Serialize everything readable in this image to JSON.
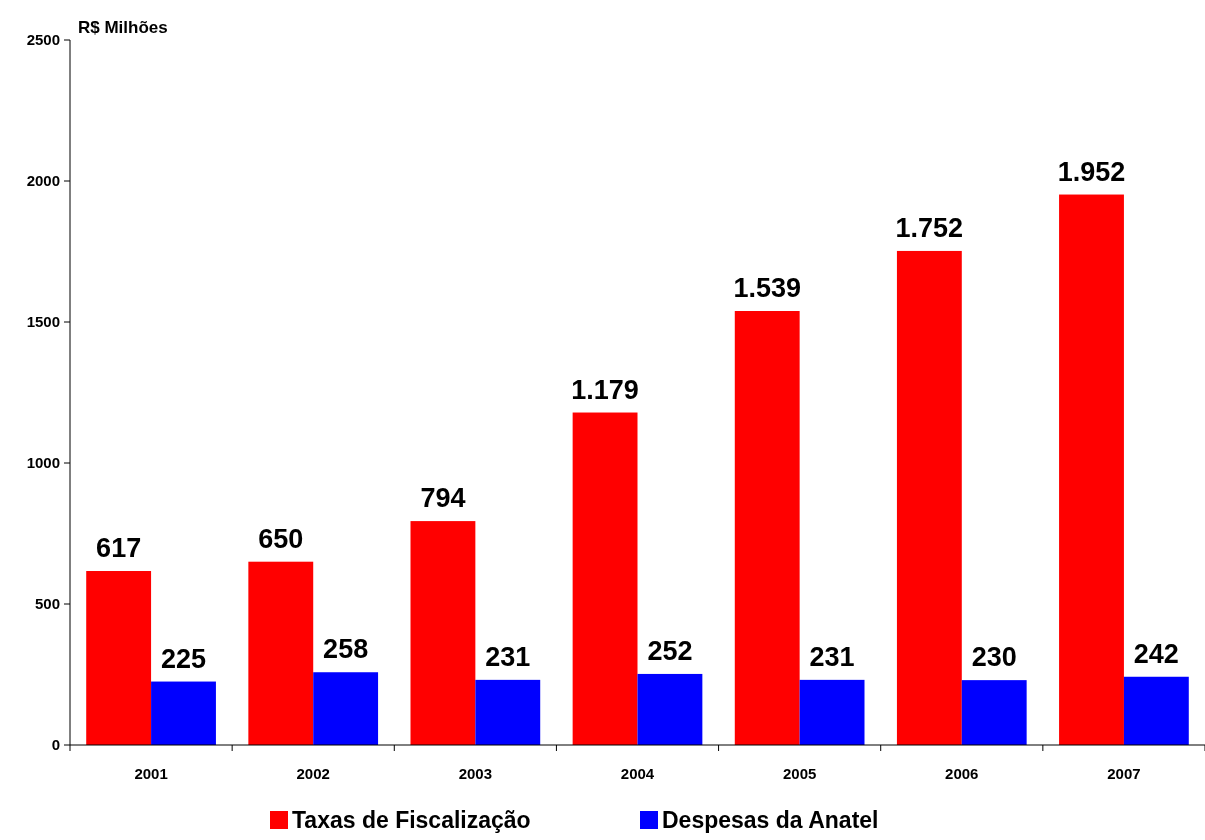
{
  "chart_data": {
    "type": "bar",
    "ylabel": "R$ Milhões",
    "categories": [
      "2001",
      "2002",
      "2003",
      "2004",
      "2005",
      "2006",
      "2007"
    ],
    "series": [
      {
        "name": "Taxas de Fiscalização",
        "color": "#ff0000",
        "values": [
          617,
          650,
          794,
          1179,
          1539,
          1752,
          1952
        ],
        "value_labels": [
          "617",
          "650",
          "794",
          "1.179",
          "1.539",
          "1.752",
          "1.952"
        ]
      },
      {
        "name": "Despesas da Anatel",
        "color": "#0000ff",
        "values": [
          225,
          258,
          231,
          252,
          231,
          230,
          242
        ],
        "value_labels": [
          "225",
          "258",
          "231",
          "252",
          "231",
          "230",
          "242"
        ]
      }
    ],
    "ylim": [
      0,
      2500
    ],
    "yticks": [
      0,
      500,
      1000,
      1500,
      2000,
      2500
    ],
    "grid": false,
    "legend": "bottom"
  }
}
